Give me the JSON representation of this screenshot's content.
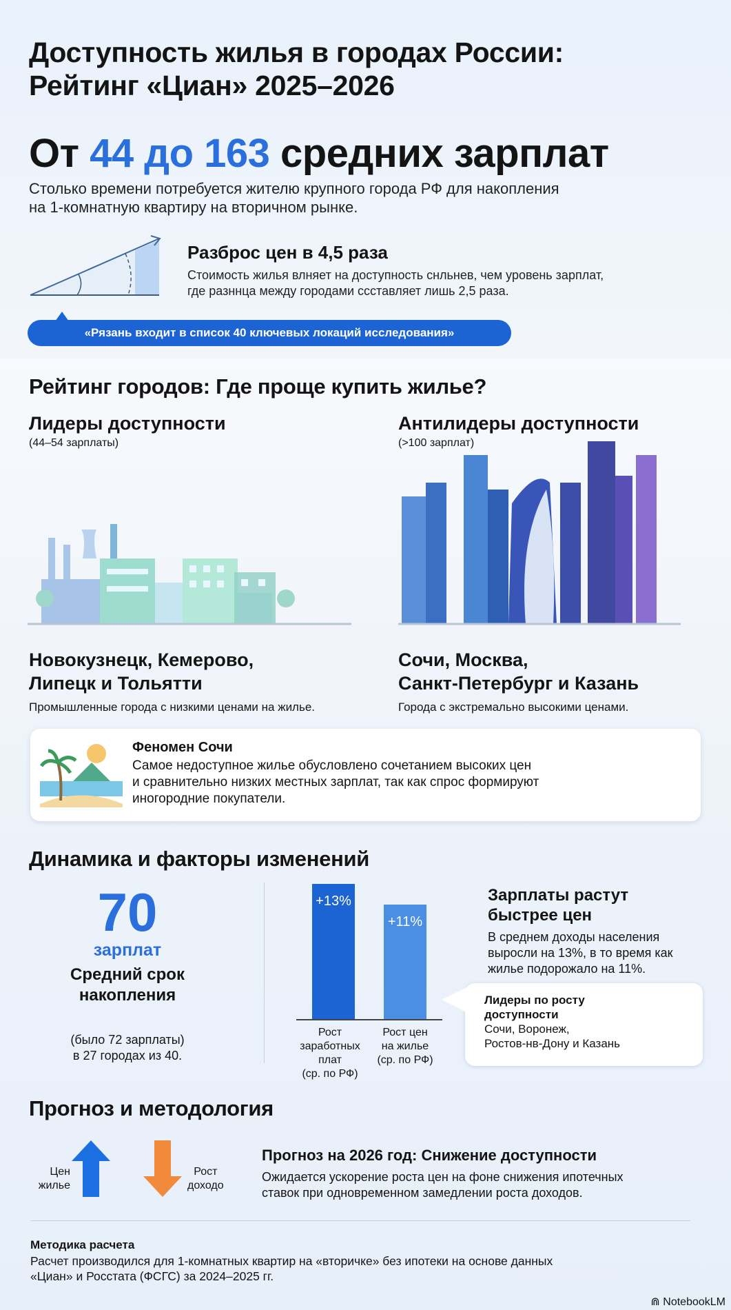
{
  "title": {
    "line1": "Доступность жилья в городах России:",
    "line2": "Рейтинг «Циан» 2025–2026"
  },
  "headline": {
    "prefix": "От",
    "range": "44 до 163",
    "suffix": "средних зарплат"
  },
  "subtitle": {
    "line1": "Столько времени потребуется жителю крупного города РФ для накопления",
    "line2": "на 1-комнатную квартиру на вторичном рынке."
  },
  "spread": {
    "title": "Разброс цен в 4,5 раза",
    "line1": "Стоимость жилья влняет на доступность снльнев, чем уровень зарплат,",
    "line2": "где разннца между городами ссставляет лишь 2,5 раза.",
    "icon": "angle-triangle-icon"
  },
  "callout_pill": "«Рязань входит в список 40 ключевых локаций исследования»",
  "rating": {
    "title": "Рейтинг городов: Где проще купить жилье?",
    "leaders": {
      "title": "Лидеры доступности",
      "range": "(44–54 зарплаты)",
      "cities_line1": "Новокузнецк, Кемерово,",
      "cities_line2": "Липецк и Тольятти",
      "desc": "Промышленные города с низкими ценами на жилье."
    },
    "antileaders": {
      "title": "Антилидеры доступности",
      "range": "(>100 зарплат)",
      "cities_line1": "Сочи, Москва,",
      "cities_line2": "Санкт-Петербург и Казань",
      "desc": "Города с экстремально высокими ценами."
    }
  },
  "sochi": {
    "title": "Феномен Сочи",
    "line1": "Самое недоступное жилье обусловлено сочетанием высоких цен",
    "line2": "и сравнительно низких местных зарплат, так как спрос формируют",
    "line3": "иногородние покупатели.",
    "icon": "beach-palm-icon"
  },
  "dynamics": {
    "title": "Динамика и факторы изменений",
    "stat_value": "70",
    "stat_unit": "зарплат",
    "stat_label_line1": "Средний срок",
    "stat_label_line2": "накопления",
    "stat_note_line1": "(было 72 зарплаты)",
    "stat_note_line2": "в 27 городах из 40.",
    "chart_data": {
      "type": "bar",
      "categories": [
        "Рост заработных плат (ср. по РФ)",
        "Рост цен на жилье (ср. по РФ)"
      ],
      "values": [
        13,
        11
      ],
      "labels": [
        "+13%",
        "+11%"
      ],
      "colors": [
        "#1c64d3",
        "#4a8fe3"
      ],
      "cat_lines": [
        [
          "Рост",
          "заработных плат",
          "(ср. по РФ)"
        ],
        [
          "Рост цен",
          "на жилье",
          "(ср. по РФ)"
        ]
      ]
    },
    "wages_title_line1": "Зарплаты растут",
    "wages_title_line2": "быстрее цен",
    "wages_line1": "В среднем доходы населения",
    "wages_line2": "выросли на 13%, в то время как",
    "wages_line3": "жилье подорожало на 11%.",
    "growth_title_line1": "Лидеры по росту",
    "growth_title_line2": "доступности",
    "growth_cities_line1": "Сочи, Воронеж,",
    "growth_cities_line2": "Ростов-нв-Дону и Казань"
  },
  "forecast": {
    "title": "Прогноз и методология",
    "up_label_line1": "Цен",
    "up_label_line2": "жилье",
    "down_label_line1": "Рост",
    "down_label_line2": "доходо",
    "heading": "Прогноз на 2026 год: Снижение доступности",
    "line1": "Ожидается ускорение роста цен на фоне снижения ипотечных",
    "line2": "ставок при одновременном замедлении роста доходов.",
    "up_color": "#1c6fe0",
    "down_color": "#f28a3c"
  },
  "method": {
    "title": "Методика расчета",
    "line1": "Расчет производился для 1-комнатных квартир на «вторичке» без ипотеки на основе данных",
    "line2": "«Циан» и Росстата (ФСГС) за 2024–2025 гг."
  },
  "brand": "NotebookLM"
}
